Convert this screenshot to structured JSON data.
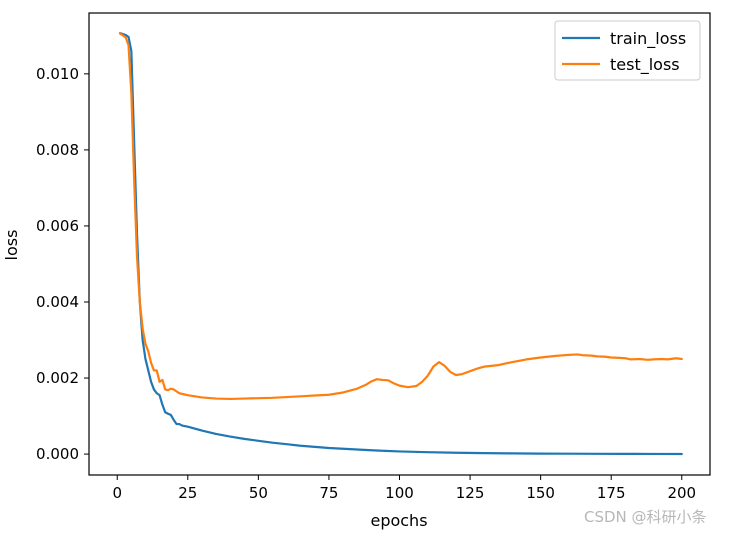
{
  "chart_data": {
    "type": "line",
    "xlabel": "epochs",
    "ylabel": "loss",
    "xlim": [
      -10,
      210
    ],
    "ylim": [
      -0.00055,
      0.0116
    ],
    "xticks": [
      0,
      25,
      50,
      75,
      100,
      125,
      150,
      175,
      200
    ],
    "xtick_labels": [
      "0",
      "25",
      "50",
      "75",
      "100",
      "125",
      "150",
      "175",
      "200"
    ],
    "yticks": [
      0.0,
      0.002,
      0.004,
      0.006,
      0.008,
      0.01
    ],
    "ytick_labels": [
      "0.000",
      "0.002",
      "0.004",
      "0.006",
      "0.008",
      "0.010"
    ],
    "grid": false,
    "legend_position": "top-right",
    "series": [
      {
        "name": "train_loss",
        "color": "#1f77b4",
        "points": [
          [
            1,
            0.01107
          ],
          [
            3,
            0.01102
          ],
          [
            4,
            0.01097
          ],
          [
            5,
            0.0106
          ],
          [
            6,
            0.0082
          ],
          [
            7,
            0.0058
          ],
          [
            8,
            0.004
          ],
          [
            9,
            0.003
          ],
          [
            10,
            0.0025
          ],
          [
            11,
            0.0022
          ],
          [
            12,
            0.0019
          ],
          [
            13,
            0.0017
          ],
          [
            14,
            0.0016
          ],
          [
            15,
            0.00155
          ],
          [
            16,
            0.0013
          ],
          [
            17,
            0.0011
          ],
          [
            18,
            0.00106
          ],
          [
            19,
            0.00103
          ],
          [
            20,
            0.0009
          ],
          [
            21,
            0.00079
          ],
          [
            22,
            0.00079
          ],
          [
            23,
            0.00075
          ],
          [
            25,
            0.00072
          ],
          [
            30,
            0.00062
          ],
          [
            35,
            0.00053
          ],
          [
            40,
            0.00046
          ],
          [
            45,
            0.0004
          ],
          [
            50,
            0.00035
          ],
          [
            55,
            0.0003
          ],
          [
            60,
            0.00026
          ],
          [
            65,
            0.00022
          ],
          [
            70,
            0.00019
          ],
          [
            75,
            0.00016
          ],
          [
            80,
            0.00014
          ],
          [
            85,
            0.00012
          ],
          [
            90,
            0.0001
          ],
          [
            95,
            8.5e-05
          ],
          [
            100,
            7e-05
          ],
          [
            110,
            5e-05
          ],
          [
            120,
            3.5e-05
          ],
          [
            130,
            2.5e-05
          ],
          [
            140,
            1.8e-05
          ],
          [
            150,
            1.3e-05
          ],
          [
            160,
            1e-05
          ],
          [
            170,
            7e-06
          ],
          [
            180,
            5e-06
          ],
          [
            190,
            4e-06
          ],
          [
            200,
            3e-06
          ]
        ]
      },
      {
        "name": "test_loss",
        "color": "#ff7f0e",
        "points": [
          [
            1,
            0.01106
          ],
          [
            3,
            0.01096
          ],
          [
            4,
            0.01075
          ],
          [
            5,
            0.0095
          ],
          [
            6,
            0.0072
          ],
          [
            7,
            0.0052
          ],
          [
            8,
            0.004
          ],
          [
            9,
            0.0033
          ],
          [
            10,
            0.0029
          ],
          [
            11,
            0.0027
          ],
          [
            12,
            0.0024
          ],
          [
            13,
            0.0022
          ],
          [
            14,
            0.0022
          ],
          [
            15,
            0.0019
          ],
          [
            16,
            0.00195
          ],
          [
            17,
            0.0017
          ],
          [
            18,
            0.00168
          ],
          [
            19,
            0.00172
          ],
          [
            20,
            0.0017
          ],
          [
            21,
            0.00165
          ],
          [
            22,
            0.0016
          ],
          [
            25,
            0.00155
          ],
          [
            30,
            0.00149
          ],
          [
            35,
            0.00146
          ],
          [
            40,
            0.00145
          ],
          [
            45,
            0.00146
          ],
          [
            50,
            0.00147
          ],
          [
            55,
            0.00148
          ],
          [
            60,
            0.0015
          ],
          [
            65,
            0.00152
          ],
          [
            70,
            0.00154
          ],
          [
            75,
            0.00156
          ],
          [
            80,
            0.00162
          ],
          [
            85,
            0.00172
          ],
          [
            88,
            0.00182
          ],
          [
            90,
            0.00191
          ],
          [
            92,
            0.00197
          ],
          [
            94,
            0.00195
          ],
          [
            96,
            0.00194
          ],
          [
            98,
            0.00186
          ],
          [
            100,
            0.0018
          ],
          [
            103,
            0.00176
          ],
          [
            106,
            0.00179
          ],
          [
            108,
            0.0019
          ],
          [
            110,
            0.00206
          ],
          [
            112,
            0.0023
          ],
          [
            114,
            0.00242
          ],
          [
            116,
            0.00232
          ],
          [
            118,
            0.00216
          ],
          [
            120,
            0.00208
          ],
          [
            122,
            0.0021
          ],
          [
            125,
            0.00218
          ],
          [
            128,
            0.00226
          ],
          [
            130,
            0.0023
          ],
          [
            135,
            0.00234
          ],
          [
            140,
            0.00242
          ],
          [
            145,
            0.00249
          ],
          [
            150,
            0.00254
          ],
          [
            155,
            0.00258
          ],
          [
            160,
            0.00261
          ],
          [
            163,
            0.00262
          ],
          [
            165,
            0.0026
          ],
          [
            168,
            0.00259
          ],
          [
            170,
            0.00257
          ],
          [
            173,
            0.00256
          ],
          [
            175,
            0.00254
          ],
          [
            178,
            0.00253
          ],
          [
            180,
            0.00252
          ],
          [
            182,
            0.00249
          ],
          [
            185,
            0.0025
          ],
          [
            188,
            0.00248
          ],
          [
            190,
            0.00249
          ],
          [
            193,
            0.0025
          ],
          [
            195,
            0.00249
          ],
          [
            198,
            0.00252
          ],
          [
            200,
            0.0025
          ]
        ]
      }
    ]
  },
  "watermark": "CSDN @科研小条"
}
